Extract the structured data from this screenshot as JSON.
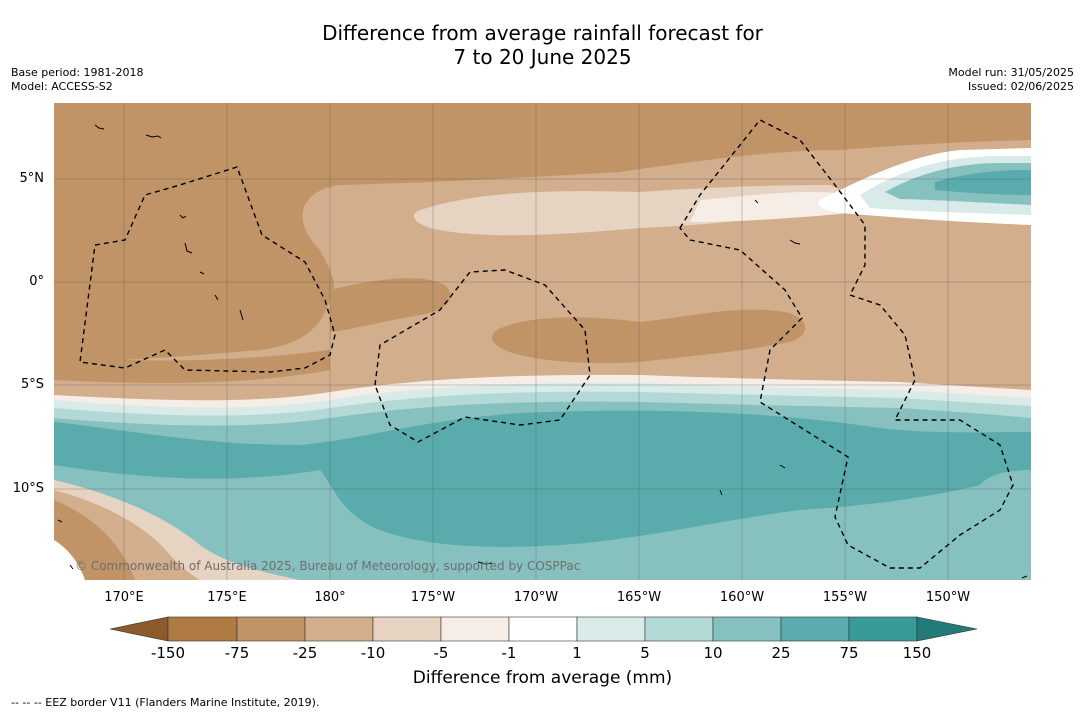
{
  "title_line1": "Difference from average rainfall forecast for",
  "title_line2": "7 to 20 June 2025",
  "base_period": "Base period: 1981-2018",
  "model": "Model: ACCESS-S2",
  "model_run": "Model run: 31/05/2025",
  "issued": "Issued: 02/06/2025",
  "latitude_labels": [
    "5°N",
    "0°",
    "5°S",
    "10°S"
  ],
  "longitude_labels": [
    "170°E",
    "175°E",
    "180°",
    "175°W",
    "170°W",
    "165°W",
    "160°W",
    "155°W",
    "150°W"
  ],
  "colorbar": {
    "title": "Difference from average (mm)",
    "ticks": [
      "-150",
      "-75",
      "-25",
      "-10",
      "-5",
      "-1",
      "1",
      "5",
      "10",
      "25",
      "75",
      "150"
    ],
    "colors": [
      "#8c5a2b",
      "#b07a43",
      "#c19468",
      "#d2ae8c",
      "#e6d3c1",
      "#f5ede6",
      "#ffffff",
      "#d8ebe8",
      "#b2d9d5",
      "#87c1bf",
      "#5aabab",
      "#3a9a98",
      "#237b79"
    ]
  },
  "copyright": "© Commonwealth of Australia 2025, Bureau of Meteorology, supported by COSPPac",
  "legend_note": "--  --  -- EEZ border V11 (Flanders Marine Institute, 2019)."
}
